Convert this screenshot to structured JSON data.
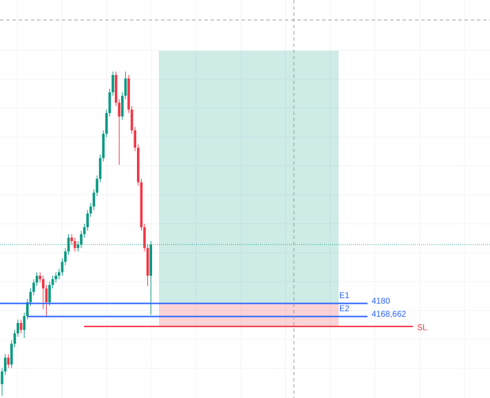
{
  "chart_data": {
    "type": "candlestick",
    "ylim": [
      4098,
      4443
    ],
    "up_color": "#089981",
    "down_color": "#f23645",
    "open": [
      4110,
      4121,
      4133,
      4127,
      4145,
      4154,
      4163,
      4157,
      4169,
      4181,
      4190,
      4198,
      4204,
      4201,
      4193,
      4181,
      4196,
      4201,
      4204,
      4207,
      4216,
      4225,
      4237,
      4234,
      4228,
      4231,
      4240,
      4246,
      4258,
      4264,
      4276,
      4288,
      4306,
      4327,
      4345,
      4363,
      4378,
      4354,
      4342,
      4360,
      4375,
      4348,
      4330,
      4315,
      4285,
      4246,
      4228,
      4204
    ],
    "high": [
      4124,
      4136,
      4136,
      4148,
      4157,
      4166,
      4166,
      4172,
      4184,
      4193,
      4201,
      4207,
      4207,
      4204,
      4196,
      4199,
      4204,
      4207,
      4210,
      4219,
      4228,
      4240,
      4240,
      4237,
      4234,
      4243,
      4249,
      4261,
      4267,
      4279,
      4291,
      4309,
      4330,
      4348,
      4366,
      4381,
      4381,
      4357,
      4363,
      4381,
      4378,
      4351,
      4333,
      4318,
      4288,
      4249,
      4231,
      4234
    ],
    "low": [
      4100,
      4118,
      4124,
      4124,
      4142,
      4151,
      4154,
      4150,
      4166,
      4178,
      4187,
      4195,
      4198,
      4175,
      4168,
      4178,
      4193,
      4198,
      4201,
      4204,
      4213,
      4222,
      4231,
      4225,
      4225,
      4228,
      4237,
      4243,
      4255,
      4261,
      4273,
      4285,
      4303,
      4324,
      4342,
      4360,
      4351,
      4300,
      4339,
      4357,
      4345,
      4327,
      4312,
      4282,
      4243,
      4225,
      4195,
      4170
    ],
    "close": [
      4121,
      4133,
      4127,
      4145,
      4154,
      4163,
      4157,
      4169,
      4181,
      4190,
      4198,
      4204,
      4201,
      4193,
      4181,
      4196,
      4201,
      4204,
      4207,
      4216,
      4225,
      4237,
      4234,
      4228,
      4231,
      4240,
      4246,
      4258,
      4264,
      4276,
      4288,
      4306,
      4327,
      4345,
      4363,
      4378,
      4354,
      4342,
      4360,
      4375,
      4348,
      4330,
      4315,
      4285,
      4246,
      4228,
      4204,
      4231
    ],
    "position": {
      "target": 4399,
      "entry": 4180,
      "stop": 4160,
      "profit_color": "#089981",
      "loss_color": "#f23645"
    },
    "levels": [
      {
        "name": "E1",
        "value": 4180,
        "value_label": "4180",
        "color": "#2962ff"
      },
      {
        "name": "E2",
        "value": 4168.662,
        "value_label": "4168,662",
        "color": "#2962ff"
      },
      {
        "name": "SL",
        "value": 4160,
        "color": "#f23645"
      }
    ]
  }
}
